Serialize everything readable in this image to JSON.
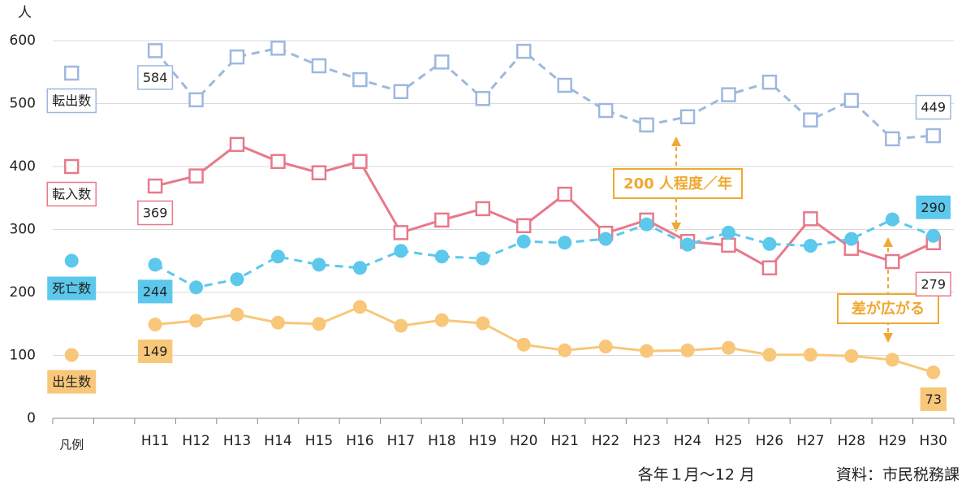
{
  "chart_data": {
    "type": "line",
    "y_unit": "人",
    "categories": [
      "凡例",
      null,
      "H11",
      "H12",
      "H13",
      "H14",
      "H15",
      "H16",
      "H17",
      "H18",
      "H19",
      "H20",
      "H21",
      "H22",
      "H23",
      "H24",
      "H25",
      "H26",
      "H27",
      "H28",
      "H29",
      "H30"
    ],
    "series": [
      {
        "name": "転出数",
        "color": "#9db8de",
        "marker": "square",
        "dashed": true,
        "values": [
          null,
          null,
          584,
          506,
          574,
          588,
          560,
          538,
          519,
          566,
          508,
          583,
          529,
          489,
          466,
          479,
          514,
          534,
          474,
          505,
          444,
          449
        ]
      },
      {
        "name": "転入数",
        "color": "#e8798a",
        "marker": "square",
        "dashed": false,
        "values": [
          null,
          null,
          369,
          385,
          435,
          408,
          390,
          408,
          295,
          315,
          333,
          306,
          356,
          294,
          315,
          281,
          275,
          239,
          317,
          270,
          249,
          279
        ]
      },
      {
        "name": "死亡数",
        "color": "#5bc8ec",
        "marker": "circle",
        "dashed": true,
        "values": [
          null,
          null,
          244,
          208,
          221,
          257,
          244,
          239,
          266,
          257,
          254,
          281,
          279,
          285,
          308,
          276,
          295,
          277,
          274,
          285,
          316,
          290
        ]
      },
      {
        "name": "出生数",
        "color": "#f8c77a",
        "marker": "circle",
        "dashed": false,
        "values": [
          null,
          null,
          149,
          155,
          165,
          152,
          150,
          177,
          147,
          156,
          151,
          117,
          108,
          114,
          107,
          108,
          112,
          101,
          101,
          99,
          93,
          73
        ]
      }
    ],
    "ylim": [
      0,
      600
    ],
    "yticks": [
      0,
      100,
      200,
      300,
      400,
      500,
      600
    ],
    "grid": true,
    "annotations": [
      "200 人程度／年",
      "差が広がる"
    ],
    "notes": [
      "各年１月～12 月",
      "資料：市民税務課"
    ]
  }
}
